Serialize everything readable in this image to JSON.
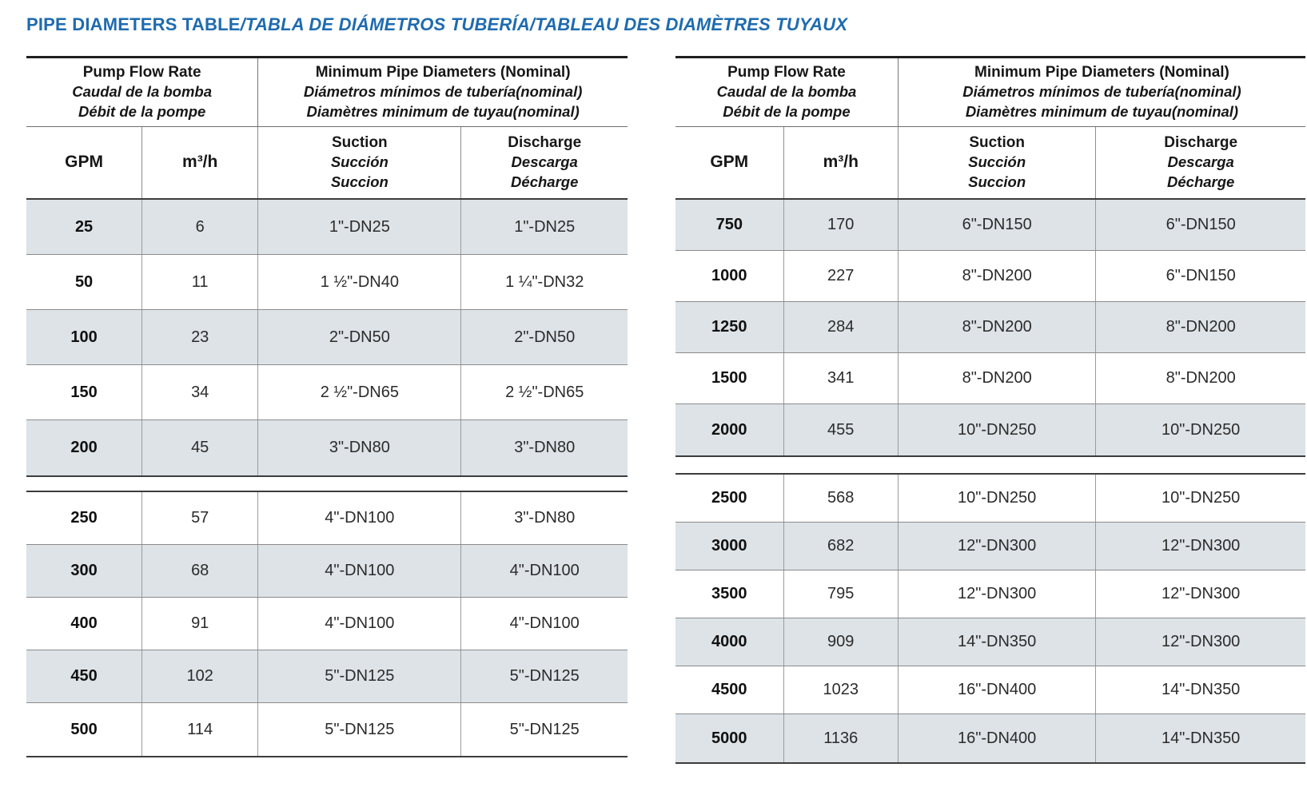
{
  "title": {
    "en": "PIPE DIAMETERS TABLE",
    "suffix": "/TABLA DE DIÁMETROS TUBERÍA/TABLEAU DES DIAMÈTRES TUYAUX"
  },
  "colors": {
    "title_blue": "#1e6bb0",
    "row_shade": "#dde3e7",
    "border_dark": "#1f1f1f"
  },
  "header": {
    "flow_en": "Pump Flow Rate",
    "flow_es": "Caudal de la bomba",
    "flow_fr": "Débit de la pompe",
    "diam_en": "Minimum Pipe Diameters (Nominal)",
    "diam_es": "Diámetros mínimos de tubería(nominal)",
    "diam_fr": "Diamètres minimum de tuyau(nominal)",
    "gpm": "GPM",
    "m3h": "m³/h",
    "suction_en": "Suction",
    "suction_es": "Succión",
    "suction_fr": "Succion",
    "discharge_en": "Discharge",
    "discharge_es": "Descarga",
    "discharge_fr": "Décharge"
  },
  "tables": {
    "left": {
      "groups": [
        {
          "rows": [
            {
              "gpm": "25",
              "m3h": "6",
              "suction": "1\"-DN25",
              "discharge": "1\"-DN25",
              "shaded": true
            },
            {
              "gpm": "50",
              "m3h": "11",
              "suction": "1 ½\"-DN40",
              "discharge": "1 ¼\"-DN32",
              "shaded": false
            },
            {
              "gpm": "100",
              "m3h": "23",
              "suction": "2\"-DN50",
              "discharge": "2\"-DN50",
              "shaded": true
            },
            {
              "gpm": "150",
              "m3h": "34",
              "suction": "2 ½\"-DN65",
              "discharge": "2 ½\"-DN65",
              "shaded": false
            },
            {
              "gpm": "200",
              "m3h": "45",
              "suction": "3\"-DN80",
              "discharge": "3\"-DN80",
              "shaded": true
            }
          ]
        },
        {
          "rows": [
            {
              "gpm": "250",
              "m3h": "57",
              "suction": "4\"-DN100",
              "discharge": "3\"-DN80",
              "shaded": false
            },
            {
              "gpm": "300",
              "m3h": "68",
              "suction": "4\"-DN100",
              "discharge": "4\"-DN100",
              "shaded": true
            },
            {
              "gpm": "400",
              "m3h": "91",
              "suction": "4\"-DN100",
              "discharge": "4\"-DN100",
              "shaded": false
            },
            {
              "gpm": "450",
              "m3h": "102",
              "suction": "5\"-DN125",
              "discharge": "5\"-DN125",
              "shaded": true
            },
            {
              "gpm": "500",
              "m3h": "114",
              "suction": "5\"-DN125",
              "discharge": "5\"-DN125",
              "shaded": false
            }
          ]
        }
      ]
    },
    "right": {
      "groups": [
        {
          "rows": [
            {
              "gpm": "750",
              "m3h": "170",
              "suction": "6\"-DN150",
              "discharge": "6\"-DN150",
              "shaded": true
            },
            {
              "gpm": "1000",
              "m3h": "227",
              "suction": "8\"-DN200",
              "discharge": "6\"-DN150",
              "shaded": false
            },
            {
              "gpm": "1250",
              "m3h": "284",
              "suction": "8\"-DN200",
              "discharge": "8\"-DN200",
              "shaded": true
            },
            {
              "gpm": "1500",
              "m3h": "341",
              "suction": "8\"-DN200",
              "discharge": "8\"-DN200",
              "shaded": false
            },
            {
              "gpm": "2000",
              "m3h": "455",
              "suction": "10\"-DN250",
              "discharge": "10\"-DN250",
              "shaded": true
            }
          ]
        },
        {
          "rows": [
            {
              "gpm": "2500",
              "m3h": "568",
              "suction": "10\"-DN250",
              "discharge": "10\"-DN250",
              "shaded": false
            },
            {
              "gpm": "3000",
              "m3h": "682",
              "suction": "12\"-DN300",
              "discharge": "12\"-DN300",
              "shaded": true
            },
            {
              "gpm": "3500",
              "m3h": "795",
              "suction": "12\"-DN300",
              "discharge": "12\"-DN300",
              "shaded": false
            },
            {
              "gpm": "4000",
              "m3h": "909",
              "suction": "14\"-DN350",
              "discharge": "12\"-DN300",
              "shaded": true
            },
            {
              "gpm": "4500",
              "m3h": "1023",
              "suction": "16\"-DN400",
              "discharge": "14\"-DN350",
              "shaded": false
            },
            {
              "gpm": "5000",
              "m3h": "1136",
              "suction": "16\"-DN400",
              "discharge": "14\"-DN350",
              "shaded": true
            }
          ]
        }
      ]
    }
  }
}
